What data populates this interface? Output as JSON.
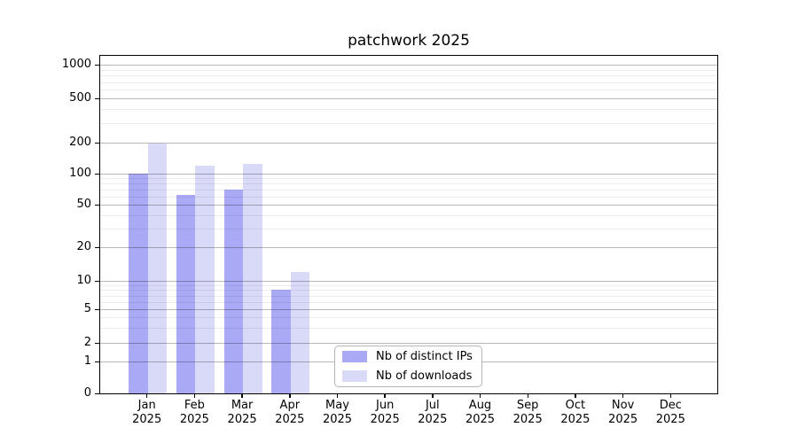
{
  "chart_data": {
    "type": "bar",
    "title": "patchwork 2025",
    "categories": [
      "Jan",
      "Feb",
      "Mar",
      "Apr",
      "May",
      "Jun",
      "Jul",
      "Aug",
      "Sep",
      "Oct",
      "Nov",
      "Dec"
    ],
    "x_tick_year": "2025",
    "series": [
      {
        "name": "Nb of distinct IPs",
        "color": "#a9a9f6",
        "values": [
          100,
          62,
          70,
          8,
          0,
          0,
          0,
          0,
          0,
          0,
          0,
          0
        ]
      },
      {
        "name": "Nb of downloads",
        "color": "#d9d9f8",
        "values": [
          195,
          120,
          124,
          12,
          0,
          0,
          0,
          0,
          0,
          0,
          0,
          0
        ]
      }
    ],
    "y_ticks": [
      0,
      1,
      2,
      5,
      10,
      20,
      50,
      100,
      200,
      500,
      1000
    ],
    "y_scale": "symlog",
    "ylim": [
      0,
      1200
    ],
    "xlabel": "",
    "ylabel": "",
    "grid": true,
    "grid_over_bars": true,
    "legend_position": "lower-center",
    "colors": {
      "axis": "#000000",
      "major_grid": "#b8b8b8",
      "minor_grid": "#ececec",
      "background": "#ffffff"
    }
  }
}
